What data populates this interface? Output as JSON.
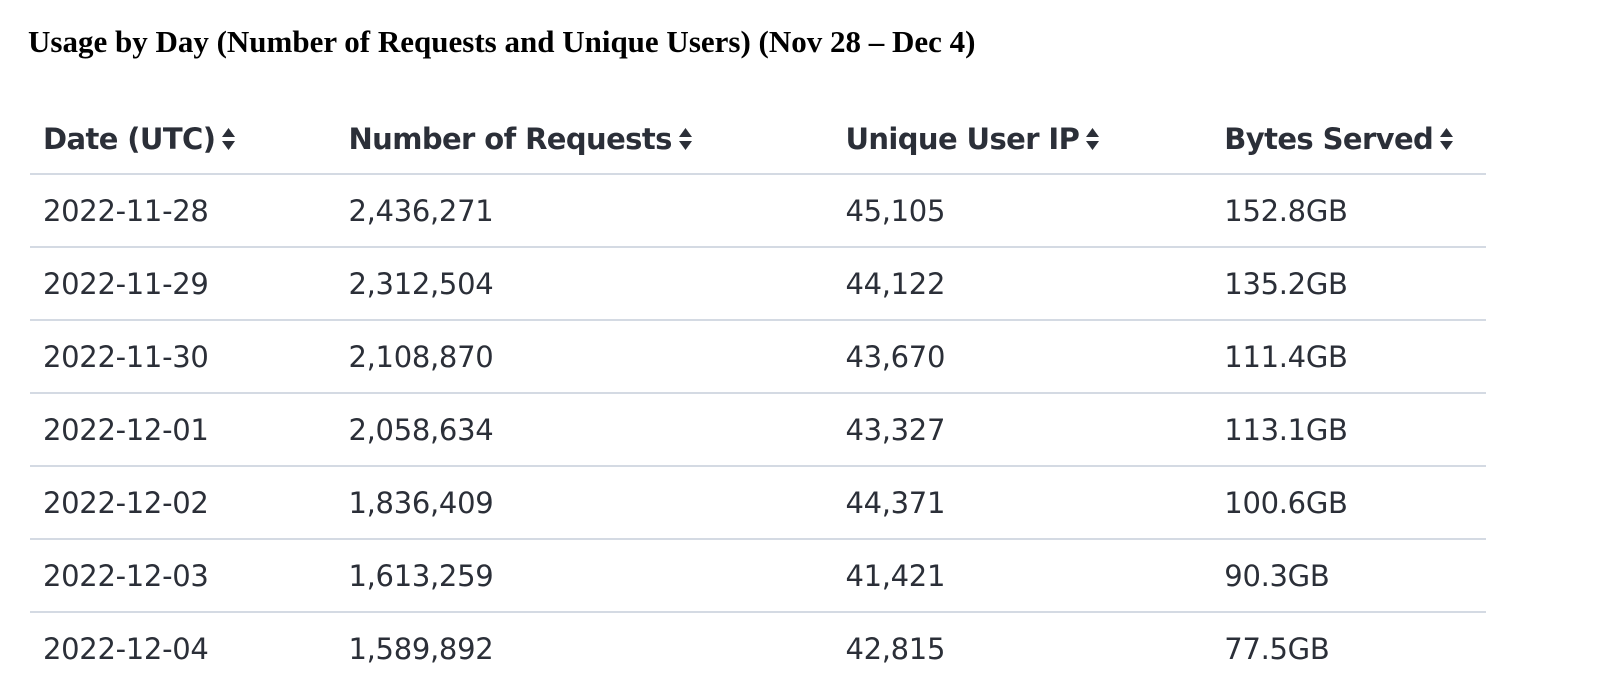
{
  "title": "Usage by Day (Number of Requests and Unique Users) (Nov 28 – Dec 4)",
  "table": {
    "headers": [
      "Date (UTC)",
      "Number of Requests",
      "Unique User IP",
      "Bytes Served"
    ],
    "sort_icon": "sort-updown-icon",
    "rows": [
      [
        "2022-11-28",
        "2,436,271",
        "45,105",
        "152.8GB"
      ],
      [
        "2022-11-29",
        "2,312,504",
        "44,122",
        "135.2GB"
      ],
      [
        "2022-11-30",
        "2,108,870",
        "43,670",
        "111.4GB"
      ],
      [
        "2022-12-01",
        "2,058,634",
        "43,327",
        "113.1GB"
      ],
      [
        "2022-12-02",
        "1,836,409",
        "44,371",
        "100.6GB"
      ],
      [
        "2022-12-03",
        "1,613,259",
        "41,421",
        "90.3GB"
      ],
      [
        "2022-12-04",
        "1,589,892",
        "42,815",
        "77.5GB"
      ]
    ]
  },
  "colors": {
    "text": "#2b2f38",
    "row_divider": "#d4dae3",
    "title": "#000000"
  }
}
